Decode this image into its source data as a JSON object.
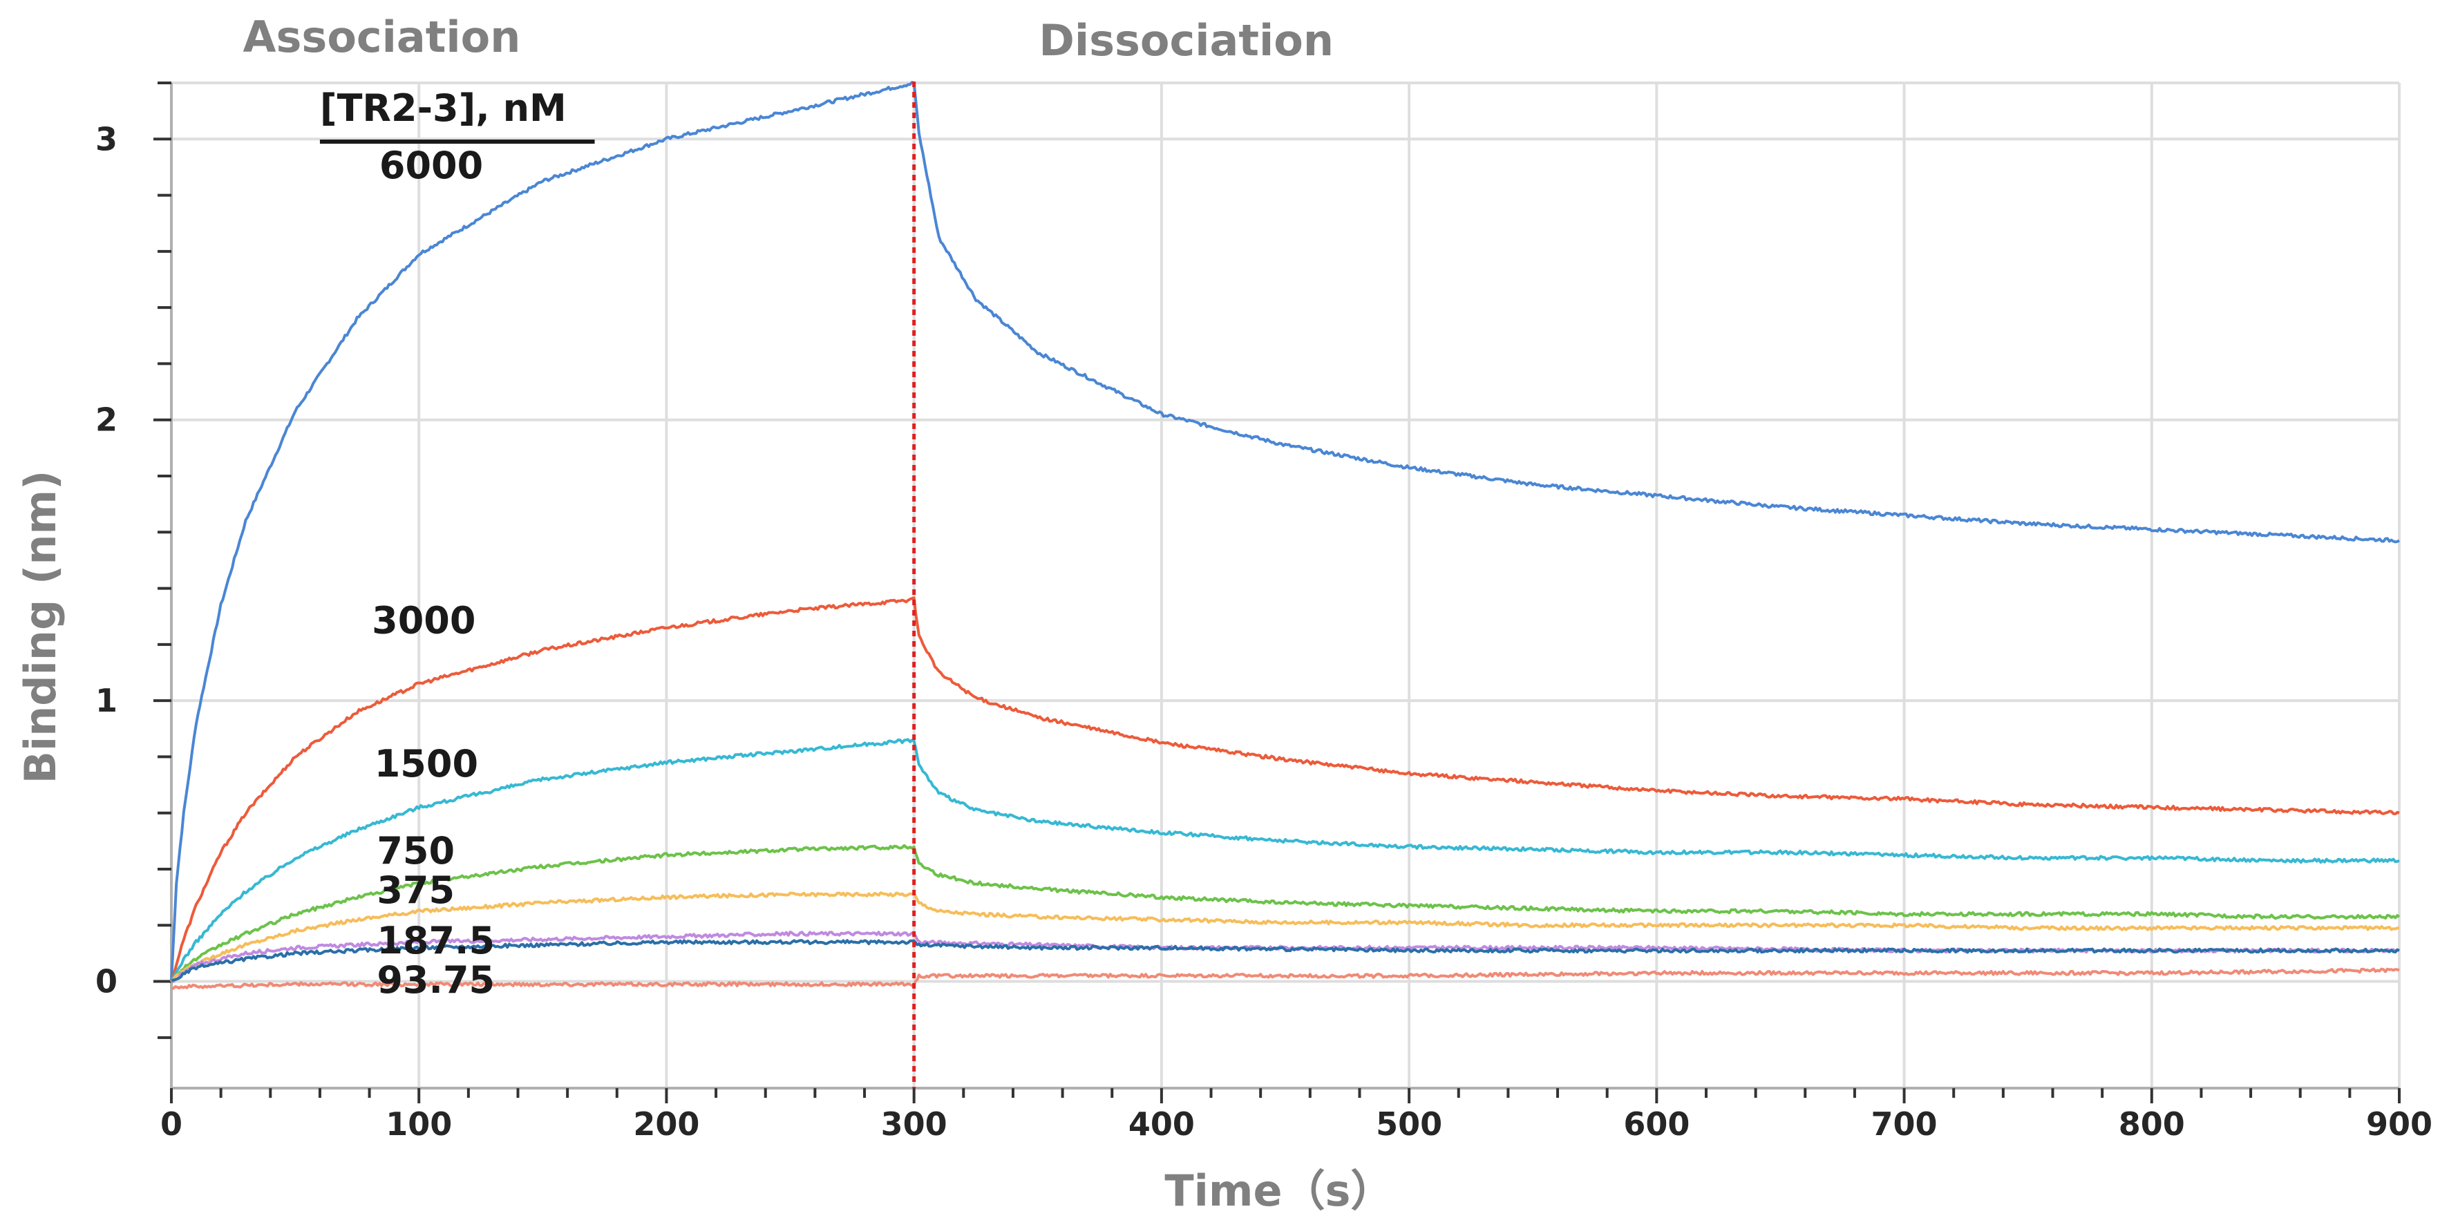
{
  "chart_data": {
    "type": "line",
    "title": "",
    "xlabel": "Time（s）",
    "ylabel": "Binding (nm)",
    "xlim": [
      0,
      900
    ],
    "ylim": [
      -0.38,
      3.2
    ],
    "x_ticks": [
      0,
      100,
      200,
      300,
      400,
      500,
      600,
      700,
      800,
      900
    ],
    "x_tick_labels": [
      "0",
      "100",
      "200",
      "300",
      "400",
      "500",
      "600",
      "700",
      "800",
      "900"
    ],
    "y_ticks": [
      0,
      1,
      2,
      3
    ],
    "y_tick_labels": [
      "0",
      "1",
      "2",
      "3"
    ],
    "grid": true,
    "phases": [
      {
        "label": "Association",
        "start": 0,
        "end": 300
      },
      {
        "label": "Dissociation",
        "start": 300,
        "end": 900
      }
    ],
    "phase_divider_x": 300,
    "legend_title": "[TR2-3], nM",
    "series": [
      {
        "name": "6000",
        "color": "#4a86d4",
        "x": [
          0,
          2,
          5,
          10,
          20,
          30,
          50,
          75,
          100,
          150,
          200,
          250,
          300,
          302,
          310,
          325,
          350,
          400,
          450,
          500,
          550,
          600,
          650,
          700,
          750,
          800,
          850,
          900
        ],
        "values": [
          0.0,
          0.35,
          0.6,
          0.92,
          1.34,
          1.64,
          2.03,
          2.36,
          2.59,
          2.85,
          3.0,
          3.1,
          3.2,
          3.02,
          2.65,
          2.43,
          2.24,
          2.02,
          1.91,
          1.83,
          1.77,
          1.73,
          1.69,
          1.66,
          1.63,
          1.61,
          1.59,
          1.57
        ]
      },
      {
        "name": "3000",
        "color": "#ec5b3a",
        "x": [
          0,
          5,
          10,
          20,
          30,
          50,
          75,
          100,
          150,
          200,
          250,
          300,
          302,
          310,
          325,
          350,
          400,
          450,
          500,
          550,
          600,
          650,
          700,
          750,
          800,
          850,
          900
        ],
        "values": [
          0.0,
          0.15,
          0.27,
          0.46,
          0.6,
          0.8,
          0.96,
          1.06,
          1.18,
          1.26,
          1.32,
          1.36,
          1.23,
          1.1,
          1.01,
          0.94,
          0.85,
          0.79,
          0.74,
          0.71,
          0.68,
          0.66,
          0.65,
          0.63,
          0.62,
          0.61,
          0.6
        ]
      },
      {
        "name": "1500",
        "color": "#37b8d3",
        "x": [
          0,
          5,
          10,
          20,
          30,
          50,
          75,
          100,
          150,
          200,
          250,
          300,
          302,
          310,
          325,
          350,
          400,
          450,
          500,
          550,
          600,
          650,
          700,
          750,
          800,
          850,
          900
        ],
        "values": [
          0.0,
          0.08,
          0.14,
          0.24,
          0.32,
          0.44,
          0.54,
          0.62,
          0.72,
          0.78,
          0.82,
          0.86,
          0.77,
          0.67,
          0.61,
          0.57,
          0.53,
          0.5,
          0.48,
          0.47,
          0.46,
          0.46,
          0.45,
          0.44,
          0.44,
          0.43,
          0.43
        ]
      },
      {
        "name": "750",
        "color": "#6cc24a",
        "x": [
          0,
          5,
          10,
          20,
          30,
          50,
          75,
          100,
          150,
          200,
          250,
          300,
          302,
          310,
          325,
          350,
          400,
          450,
          500,
          550,
          600,
          650,
          700,
          750,
          800,
          850,
          900
        ],
        "values": [
          0.0,
          0.05,
          0.08,
          0.13,
          0.17,
          0.24,
          0.3,
          0.35,
          0.41,
          0.45,
          0.47,
          0.48,
          0.42,
          0.38,
          0.35,
          0.33,
          0.3,
          0.28,
          0.27,
          0.26,
          0.25,
          0.25,
          0.24,
          0.24,
          0.24,
          0.23,
          0.23
        ]
      },
      {
        "name": "375",
        "color": "#f6bd5a",
        "x": [
          0,
          5,
          10,
          20,
          30,
          50,
          75,
          100,
          150,
          200,
          250,
          300,
          302,
          310,
          325,
          350,
          400,
          450,
          500,
          550,
          600,
          650,
          700,
          750,
          800,
          850,
          900
        ],
        "values": [
          0.0,
          0.04,
          0.06,
          0.1,
          0.13,
          0.18,
          0.22,
          0.25,
          0.28,
          0.3,
          0.31,
          0.31,
          0.28,
          0.25,
          0.24,
          0.23,
          0.22,
          0.21,
          0.21,
          0.2,
          0.2,
          0.2,
          0.2,
          0.19,
          0.19,
          0.19,
          0.19
        ]
      },
      {
        "name": "187.5",
        "color": "#c08ae0",
        "x": [
          0,
          10,
          30,
          50,
          100,
          150,
          200,
          250,
          300,
          302,
          350,
          400,
          500,
          600,
          700,
          800,
          900
        ],
        "values": [
          0.0,
          0.06,
          0.1,
          0.12,
          0.14,
          0.15,
          0.16,
          0.17,
          0.17,
          0.14,
          0.13,
          0.12,
          0.12,
          0.12,
          0.11,
          0.11,
          0.11
        ]
      },
      {
        "name": "",
        "color": "#2a6fa8",
        "x": [
          0,
          10,
          30,
          50,
          100,
          150,
          200,
          250,
          300,
          302,
          350,
          400,
          500,
          600,
          700,
          800,
          900
        ],
        "values": [
          0.0,
          0.05,
          0.08,
          0.1,
          0.12,
          0.13,
          0.14,
          0.14,
          0.14,
          0.13,
          0.12,
          0.12,
          0.11,
          0.11,
          0.11,
          0.11,
          0.11
        ]
      },
      {
        "name": "93.75",
        "color": "#f08a76",
        "x": [
          0,
          50,
          100,
          150,
          200,
          250,
          300,
          302,
          400,
          500,
          600,
          700,
          800,
          900
        ],
        "values": [
          -0.02,
          -0.01,
          -0.01,
          -0.01,
          -0.01,
          -0.01,
          -0.01,
          0.02,
          0.02,
          0.02,
          0.03,
          0.03,
          0.03,
          0.04
        ]
      }
    ]
  }
}
